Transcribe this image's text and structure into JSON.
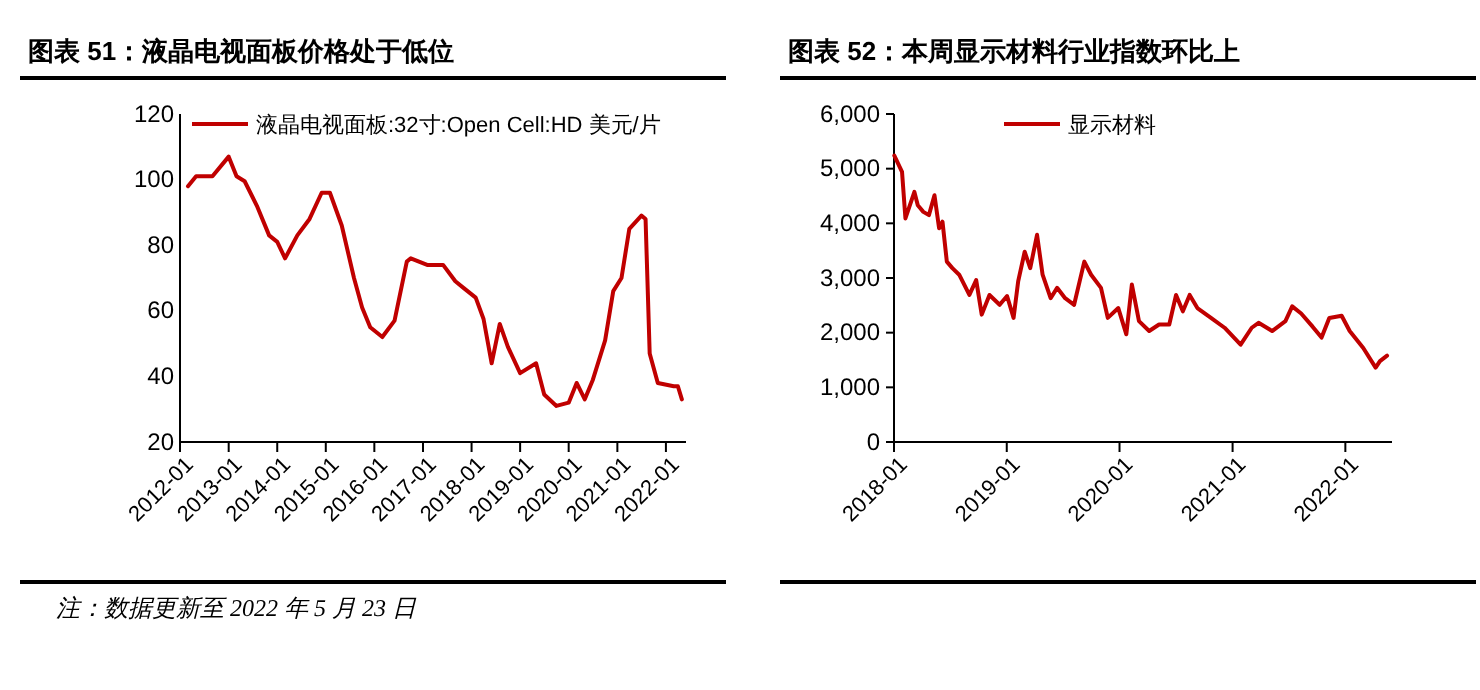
{
  "chart_data": [
    {
      "type": "line",
      "title": "图表 51：液晶电视面板价格处于低位",
      "x": [
        "2012-03",
        "2012-05",
        "2012-09",
        "2013-01",
        "2013-03",
        "2013-05",
        "2013-08",
        "2013-11",
        "2014-01",
        "2014-03",
        "2014-06",
        "2014-09",
        "2014-12",
        "2015-02",
        "2015-05",
        "2015-08",
        "2015-10",
        "2015-12",
        "2016-03",
        "2016-06",
        "2016-09",
        "2016-10",
        "2017-02",
        "2017-06",
        "2017-09",
        "2017-11",
        "2018-02",
        "2018-04",
        "2018-06",
        "2018-08",
        "2018-10",
        "2019-01",
        "2019-05",
        "2019-07",
        "2019-10",
        "2020-01",
        "2020-03",
        "2020-05",
        "2020-07",
        "2020-10",
        "2020-12",
        "2021-02",
        "2021-04",
        "2021-07",
        "2021-08",
        "2021-09",
        "2021-11",
        "2022-03",
        "2022-04",
        "2022-05"
      ],
      "series": [
        {
          "name": "液晶电视面板:32寸:Open Cell:HD 美元/片",
          "color": "#c00000",
          "values": [
            98,
            101,
            101,
            107,
            101,
            99.5,
            92,
            83,
            81,
            76,
            83,
            88,
            96,
            96,
            86,
            70,
            61,
            55,
            52,
            57,
            75,
            76,
            74,
            74,
            69,
            67,
            64,
            57.5,
            44,
            56,
            49,
            41,
            44,
            34.5,
            31,
            32,
            38,
            33,
            39,
            51,
            66,
            70,
            85,
            89,
            88,
            47,
            38,
            37,
            37,
            33
          ]
        }
      ],
      "xlim": [
        "2012-01",
        "2022-06"
      ],
      "xticks": [
        "2012-01",
        "2013-01",
        "2014-01",
        "2015-01",
        "2016-01",
        "2017-01",
        "2018-01",
        "2019-01",
        "2020-01",
        "2021-01",
        "2022-01"
      ],
      "ylim": [
        20,
        120
      ],
      "yticks": [
        20,
        40,
        60,
        80,
        100,
        120
      ],
      "legend": "top",
      "annotations": [
        "注：数据更新至 2022 年 5 月 23 日"
      ]
    },
    {
      "type": "line",
      "title": "图表 52：本周显示材料行业指数环比上",
      "x": [
        "2018-01-02",
        "2018-01-27",
        "2018-02-07",
        "2018-03-08",
        "2018-03-19",
        "2018-04-06",
        "2018-04-24",
        "2018-05-12",
        "2018-05-27",
        "2018-06-07",
        "2018-06-21",
        "2018-07-09",
        "2018-07-31",
        "2018-09-02",
        "2018-09-24",
        "2018-10-12",
        "2018-11-06",
        "2018-12-09",
        "2019-01-02",
        "2019-01-23",
        "2019-02-07",
        "2019-02-28",
        "2019-03-18",
        "2019-04-09",
        "2019-04-27",
        "2019-05-23",
        "2019-06-13",
        "2019-07-09",
        "2019-08-07",
        "2019-09-09",
        "2019-10-01",
        "2019-11-02",
        "2019-11-24",
        "2019-12-28",
        "2020-01-23",
        "2020-02-10",
        "2020-03-04",
        "2020-04-06",
        "2020-05-08",
        "2020-06-10",
        "2020-07-02",
        "2020-07-24",
        "2020-08-15",
        "2020-09-09",
        "2020-10-23",
        "2020-12-06",
        "2021-01-27",
        "2021-03-04",
        "2021-03-26",
        "2021-05-09",
        "2021-06-21",
        "2021-07-13",
        "2021-08-11",
        "2021-09-17",
        "2021-10-16",
        "2021-11-10",
        "2021-12-20",
        "2022-01-15",
        "2022-02-28",
        "2022-04-09",
        "2022-04-23",
        "2022-05-16"
      ],
      "series": [
        {
          "name": "显示材料",
          "color": "#c00000",
          "values": [
            5240,
            4940,
            4090,
            4575,
            4330,
            4210,
            4150,
            4515,
            3910,
            4030,
            3300,
            3180,
            3060,
            2690,
            2960,
            2330,
            2690,
            2510,
            2670,
            2270,
            2940,
            3480,
            3180,
            3790,
            3060,
            2630,
            2820,
            2630,
            2510,
            3300,
            3060,
            2820,
            2270,
            2450,
            1970,
            2880,
            2210,
            2030,
            2150,
            2150,
            2690,
            2390,
            2690,
            2450,
            2270,
            2090,
            1780,
            2090,
            2180,
            2030,
            2210,
            2480,
            2350,
            2110,
            1910,
            2270,
            2310,
            2030,
            1720,
            1360,
            1480,
            1580
          ]
        }
      ],
      "xlim": [
        "2018-01",
        "2022-06"
      ],
      "xticks": [
        "2018-01",
        "2019-01",
        "2020-01",
        "2021-01",
        "2022-01"
      ],
      "ylim": [
        0,
        6000
      ],
      "yticks": [
        0,
        {
          "value": 1000,
          "label": "1,000"
        },
        {
          "value": 2000,
          "label": "2,000"
        },
        {
          "value": 3000,
          "label": "3,000"
        },
        {
          "value": 4000,
          "label": "4,000"
        },
        {
          "value": 5000,
          "label": "5,000"
        },
        {
          "value": 6000,
          "label": "6,000"
        }
      ],
      "legend": "top"
    }
  ]
}
